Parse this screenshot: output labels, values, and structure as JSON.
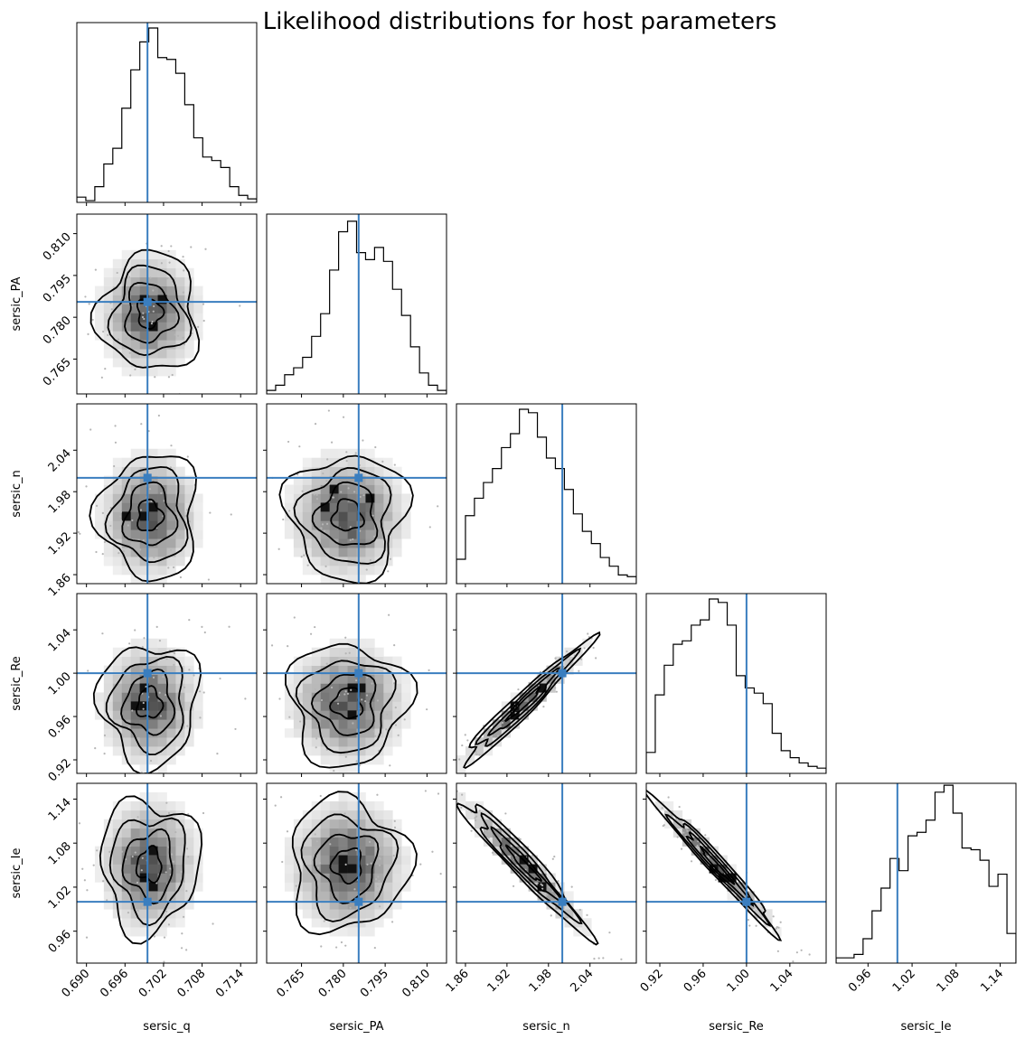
{
  "title": "Likelihood distributions for host parameters",
  "chart_data": {
    "type": "corner",
    "params": [
      {
        "name": "sersic_q",
        "range": [
          0.6885,
          0.7165
        ],
        "ticks": [
          0.69,
          0.696,
          0.702,
          0.708,
          0.714
        ],
        "tick_labels": [
          "0.690",
          "0.696",
          "0.702",
          "0.708",
          "0.714"
        ],
        "truth": 0.6995,
        "mean": 0.6998,
        "sd": 0.0038
      },
      {
        "name": "sersic_PA",
        "range": [
          0.7525,
          0.817
        ],
        "ticks": [
          0.765,
          0.78,
          0.795,
          0.81
        ],
        "tick_labels": [
          "0.765",
          "0.780",
          "0.795",
          "0.810"
        ],
        "truth": 0.7855,
        "mean": 0.7815,
        "sd": 0.0105
      },
      {
        "name": "sersic_n",
        "range": [
          1.847,
          2.107
        ],
        "ticks": [
          1.86,
          1.92,
          1.98,
          2.04
        ],
        "tick_labels": [
          "1.86",
          "1.92",
          "1.98",
          "2.04"
        ],
        "truth": 2.0,
        "mean": 1.945,
        "sd": 0.045
      },
      {
        "name": "sersic_Re",
        "range": [
          0.9075,
          1.0735
        ],
        "ticks": [
          0.92,
          0.96,
          1.0,
          1.04
        ],
        "tick_labels": [
          "0.92",
          "0.96",
          "1.00",
          "1.04"
        ],
        "truth": 1.0,
        "mean": 0.972,
        "sd": 0.028
      },
      {
        "name": "sersic_Ie",
        "range": [
          0.9165,
          1.1615
        ],
        "ticks": [
          0.96,
          1.02,
          1.08,
          1.14
        ],
        "tick_labels": [
          "0.96",
          "1.02",
          "1.08",
          "1.14"
        ],
        "truth": 1.0,
        "mean": 1.05,
        "sd": 0.045
      }
    ],
    "correlations": [
      [
        1.0,
        0.0,
        0.0,
        0.0,
        0.0
      ],
      [
        0.0,
        1.0,
        0.0,
        0.0,
        0.0
      ],
      [
        0.0,
        0.0,
        1.0,
        0.97,
        -0.96
      ],
      [
        0.0,
        0.0,
        0.97,
        1.0,
        -0.98
      ],
      [
        0.0,
        0.0,
        -0.96,
        -0.98,
        1.0
      ]
    ],
    "histograms": [
      [
        0.03,
        0.01,
        0.09,
        0.22,
        0.31,
        0.54,
        0.76,
        0.92,
        1.0,
        0.83,
        0.82,
        0.74,
        0.56,
        0.37,
        0.26,
        0.24,
        0.2,
        0.09,
        0.04,
        0.02
      ],
      [
        0.02,
        0.05,
        0.11,
        0.15,
        0.21,
        0.33,
        0.46,
        0.71,
        0.93,
        0.99,
        0.81,
        0.77,
        0.84,
        0.76,
        0.6,
        0.45,
        0.27,
        0.12,
        0.05,
        0.02
      ],
      [
        0.14,
        0.39,
        0.49,
        0.58,
        0.66,
        0.78,
        0.86,
        1.0,
        0.98,
        0.84,
        0.72,
        0.66,
        0.54,
        0.4,
        0.3,
        0.23,
        0.15,
        0.1,
        0.05,
        0.04
      ],
      [
        0.12,
        0.45,
        0.62,
        0.74,
        0.76,
        0.85,
        0.88,
        1.0,
        0.98,
        0.85,
        0.56,
        0.49,
        0.46,
        0.4,
        0.23,
        0.13,
        0.09,
        0.06,
        0.04,
        0.03
      ],
      [
        0.03,
        0.03,
        0.05,
        0.14,
        0.3,
        0.43,
        0.6,
        0.53,
        0.73,
        0.75,
        0.82,
        0.98,
        1.02,
        0.86,
        0.66,
        0.65,
        0.59,
        0.44,
        0.51,
        0.17
      ]
    ],
    "contour_levels_sigma": [
      0.5,
      1.0,
      1.5,
      2.0
    ]
  }
}
